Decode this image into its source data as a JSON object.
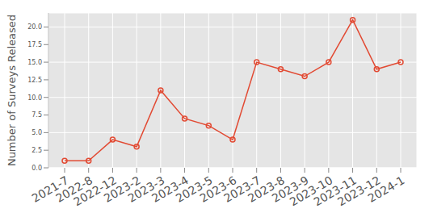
{
  "chart_data": {
    "type": "line",
    "y_label": "Number of Surveys Released",
    "categories": [
      "2021-7",
      "2022-8",
      "2022-12",
      "2023-2",
      "2023-3",
      "2023-4",
      "2023-5",
      "2023-6",
      "2023-7",
      "2023-8",
      "2023-9",
      "2023-10",
      "2023-11",
      "2023-12",
      "2024-1"
    ],
    "values": [
      1,
      1,
      4,
      3,
      11,
      7,
      6,
      4,
      15,
      14,
      13,
      15,
      21,
      14,
      15
    ],
    "color": "#E24A33",
    "marker": "circle",
    "line_style": "solid",
    "ylim": [
      0,
      22
    ],
    "yticks": [
      {
        "value": 0,
        "label": "0.0"
      },
      2.5,
      {
        "value": 5,
        "label": "5.0"
      },
      7.5,
      {
        "value": 10,
        "label": "10.0"
      },
      12.5,
      {
        "value": 15,
        "label": "15.0"
      },
      17.5,
      {
        "value": 20,
        "label": "20.0"
      }
    ],
    "grid": true
  }
}
